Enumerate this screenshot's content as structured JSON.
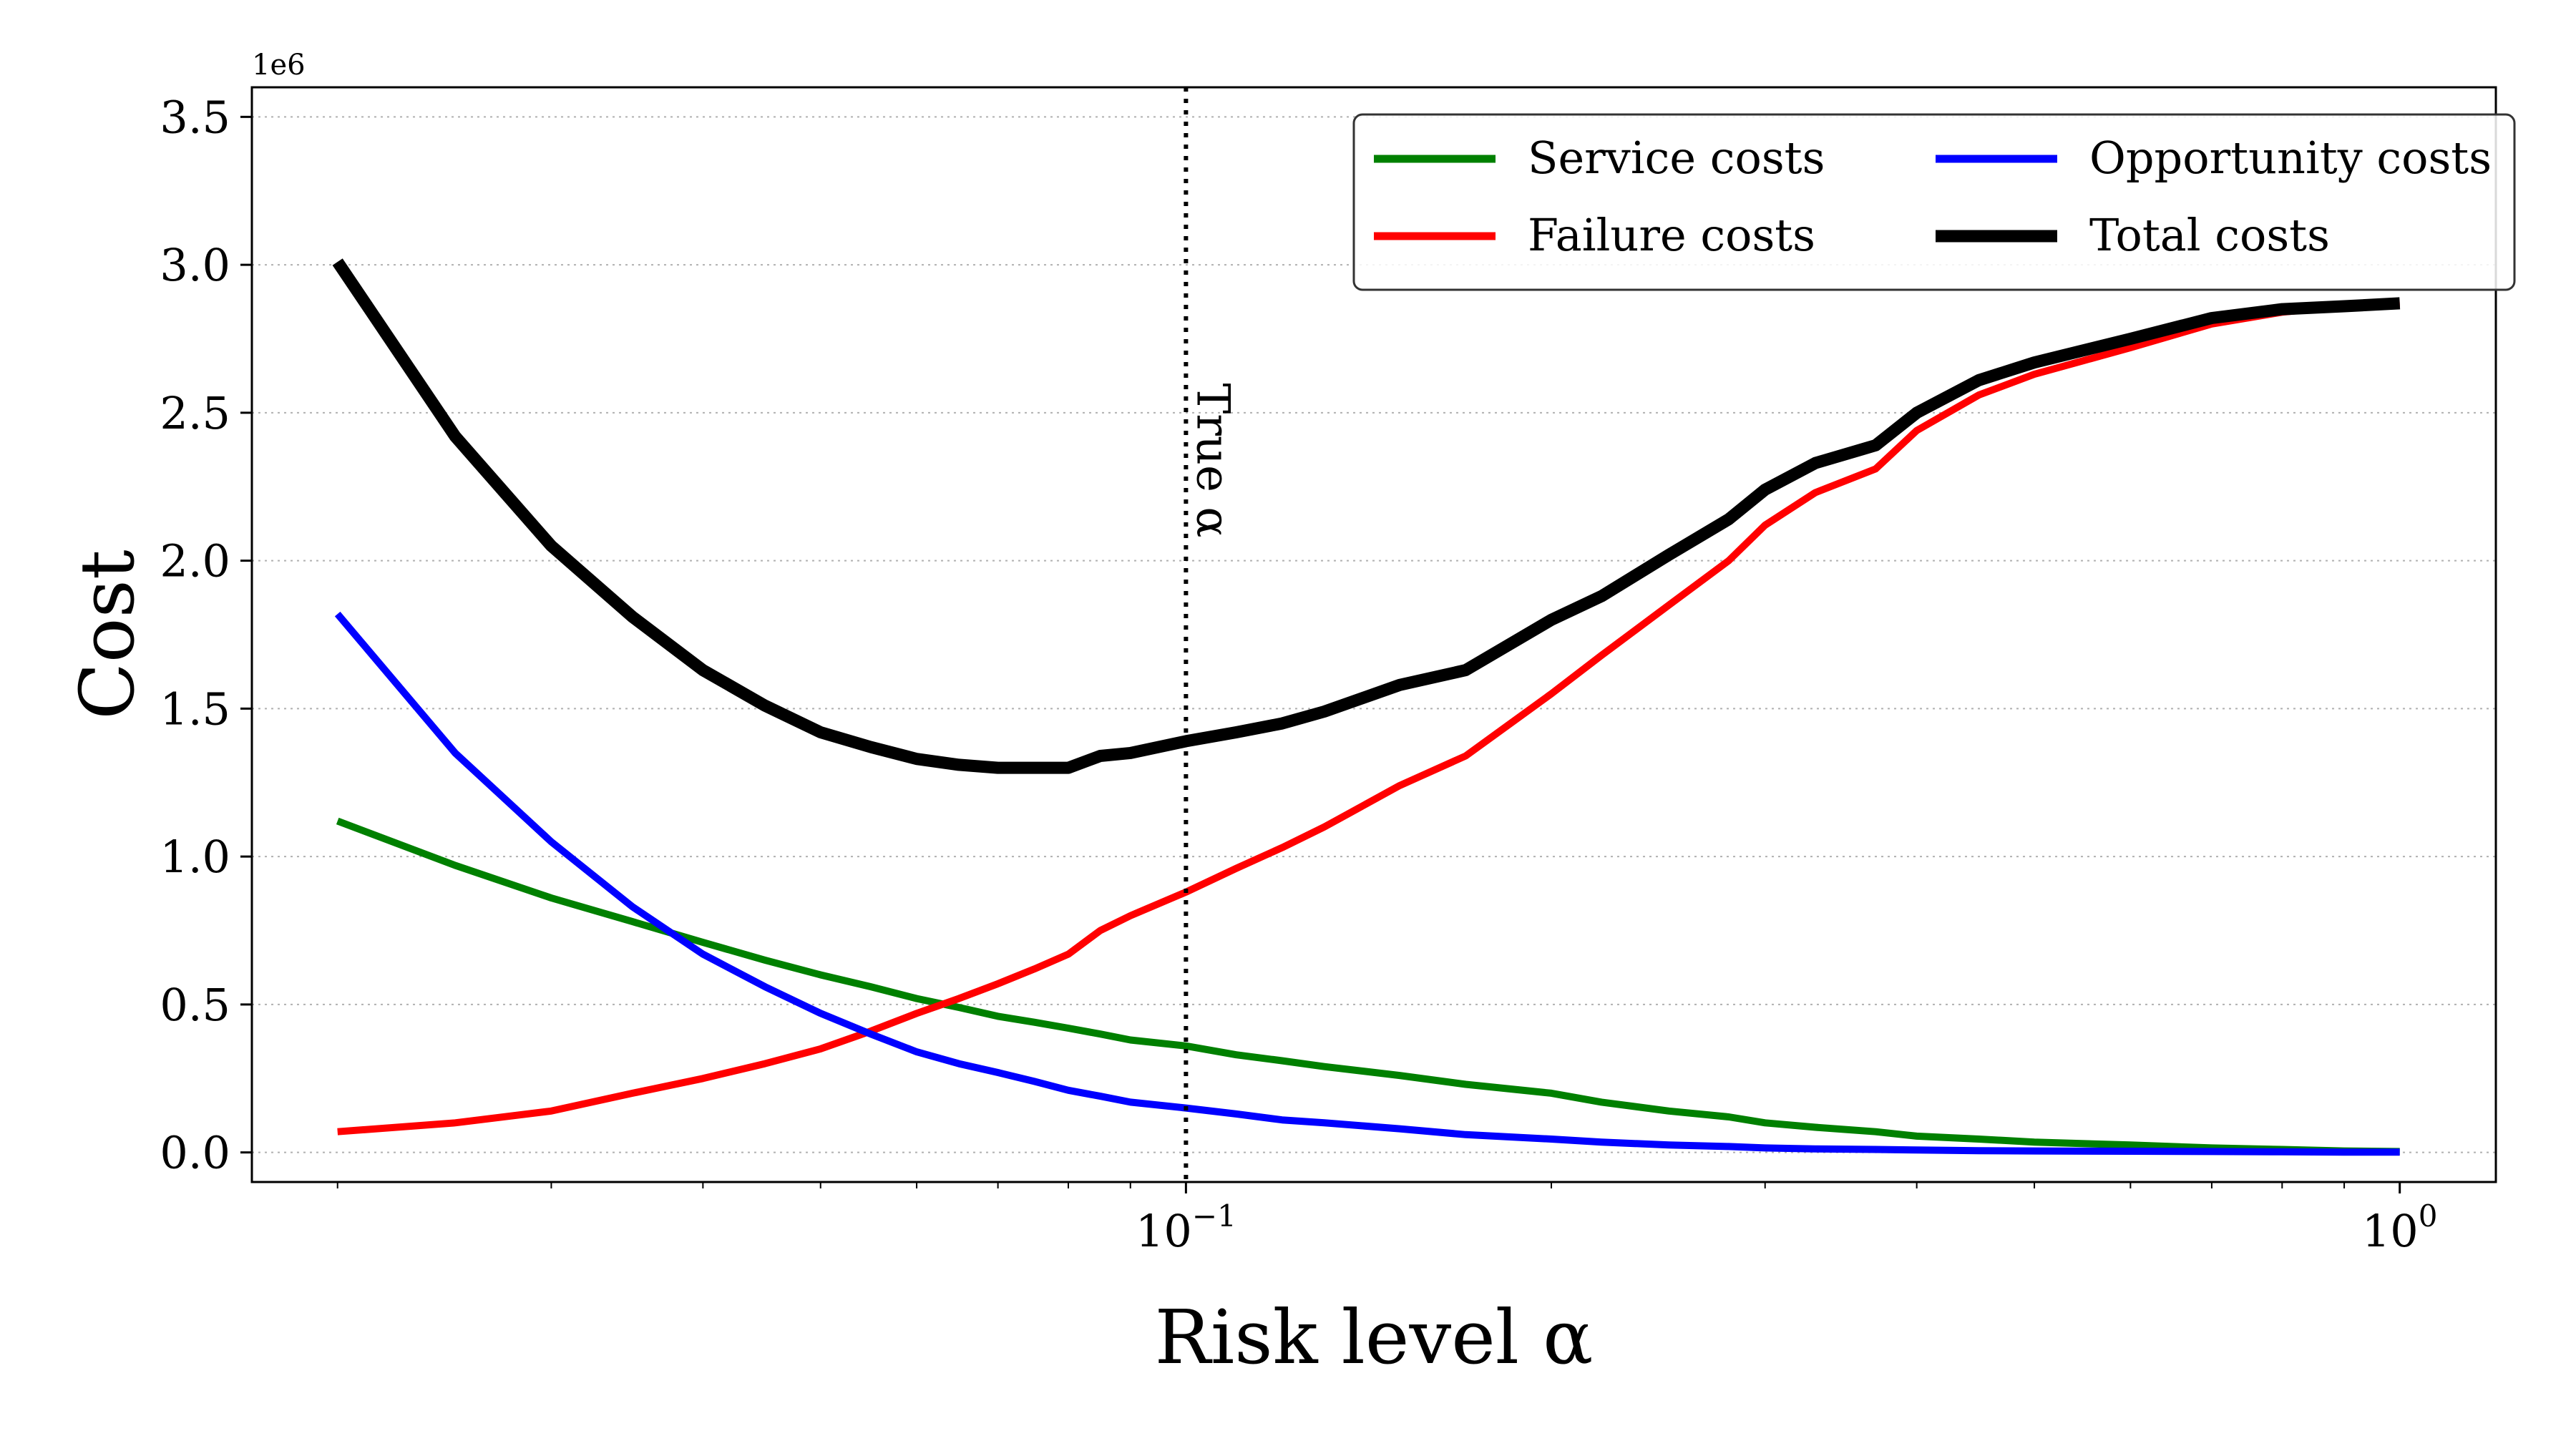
{
  "chart_data": {
    "type": "line",
    "title": "",
    "xlabel": "Risk level α",
    "ylabel": "Cost",
    "xscale": "log",
    "xlim": [
      0.017,
      1.2
    ],
    "ylim": [
      -0.1,
      3.6
    ],
    "y_multiplier_label": "1e6",
    "y_ticks": [
      0.0,
      0.5,
      1.0,
      1.5,
      2.0,
      2.5,
      3.0,
      3.5
    ],
    "y_tick_labels": [
      "0.0",
      "0.5",
      "1.0",
      "1.5",
      "2.0",
      "2.5",
      "3.0",
      "3.5"
    ],
    "x_major_ticks": [
      {
        "value": 0.1,
        "base": "10",
        "exp": "−1"
      },
      {
        "value": 1.0,
        "base": "10",
        "exp": "0"
      }
    ],
    "x_minor_ticks": [
      0.02,
      0.03,
      0.04,
      0.05,
      0.06,
      0.07,
      0.08,
      0.09,
      0.2,
      0.3,
      0.4,
      0.5,
      0.6,
      0.7,
      0.8,
      0.9
    ],
    "grid": "horizontal dotted",
    "legend_position": "top-right",
    "annotation": {
      "text": "True α",
      "x": 0.1
    },
    "x": [
      0.02,
      0.025,
      0.03,
      0.035,
      0.04,
      0.045,
      0.05,
      0.055,
      0.06,
      0.065,
      0.07,
      0.075,
      0.08,
      0.085,
      0.09,
      0.1,
      0.11,
      0.12,
      0.13,
      0.15,
      0.17,
      0.2,
      0.22,
      0.25,
      0.28,
      0.3,
      0.33,
      0.37,
      0.4,
      0.45,
      0.5,
      0.6,
      0.7,
      0.8,
      0.9,
      1.0
    ],
    "series": [
      {
        "name": "Service costs",
        "color": "#008000",
        "values": [
          1.12,
          0.97,
          0.86,
          0.78,
          0.71,
          0.65,
          0.6,
          0.56,
          0.52,
          0.49,
          0.46,
          0.44,
          0.42,
          0.4,
          0.38,
          0.36,
          0.33,
          0.31,
          0.29,
          0.26,
          0.23,
          0.2,
          0.17,
          0.14,
          0.12,
          0.1,
          0.085,
          0.07,
          0.055,
          0.045,
          0.035,
          0.025,
          0.015,
          0.01,
          0.005,
          0.003
        ]
      },
      {
        "name": "Failure costs",
        "color": "#ff0000",
        "values": [
          0.07,
          0.1,
          0.14,
          0.2,
          0.25,
          0.3,
          0.35,
          0.41,
          0.47,
          0.52,
          0.57,
          0.62,
          0.67,
          0.75,
          0.8,
          0.88,
          0.96,
          1.03,
          1.1,
          1.24,
          1.34,
          1.55,
          1.68,
          1.85,
          2.0,
          2.12,
          2.23,
          2.31,
          2.44,
          2.56,
          2.63,
          2.72,
          2.8,
          2.84,
          2.86,
          2.87
        ]
      },
      {
        "name": "Opportunity costs",
        "color": "#0000ff",
        "values": [
          1.82,
          1.35,
          1.05,
          0.83,
          0.67,
          0.56,
          0.47,
          0.4,
          0.34,
          0.3,
          0.27,
          0.24,
          0.21,
          0.19,
          0.17,
          0.15,
          0.13,
          0.11,
          0.1,
          0.08,
          0.06,
          0.045,
          0.035,
          0.025,
          0.02,
          0.015,
          0.012,
          0.01,
          0.008,
          0.006,
          0.005,
          0.004,
          0.003,
          0.002,
          0.001,
          0.001
        ]
      },
      {
        "name": "Total costs",
        "color": "#000000",
        "values": [
          3.01,
          2.42,
          2.05,
          1.81,
          1.63,
          1.51,
          1.42,
          1.37,
          1.33,
          1.31,
          1.3,
          1.3,
          1.3,
          1.34,
          1.35,
          1.39,
          1.42,
          1.45,
          1.49,
          1.58,
          1.63,
          1.8,
          1.88,
          2.02,
          2.14,
          2.24,
          2.33,
          2.39,
          2.5,
          2.61,
          2.67,
          2.75,
          2.82,
          2.85,
          2.86,
          2.87
        ]
      }
    ]
  }
}
